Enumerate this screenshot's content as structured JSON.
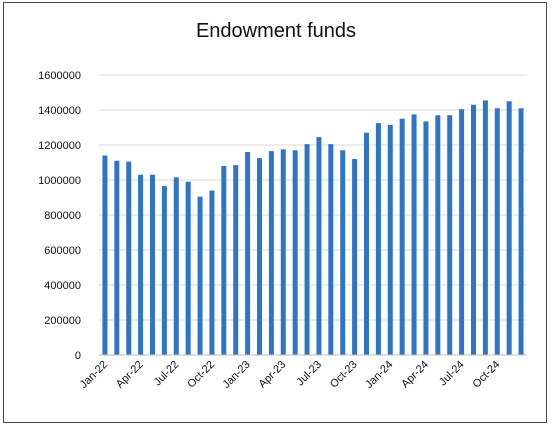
{
  "chart_data": {
    "type": "bar",
    "title": "Endowment funds",
    "xlabel": "",
    "ylabel": "",
    "ylim": [
      0,
      1600000
    ],
    "yticks": [
      0,
      200000,
      400000,
      600000,
      800000,
      1000000,
      1200000,
      1400000,
      1600000
    ],
    "ytick_labels": [
      "0",
      "200000",
      "400000",
      "600000",
      "800000",
      "1000000",
      "1200000",
      "1400000",
      "1600000"
    ],
    "grid": true,
    "bar_color": "#2e75c8",
    "categories": [
      "Jan-22",
      "Feb-22",
      "Mar-22",
      "Apr-22",
      "May-22",
      "Jun-22",
      "Jul-22",
      "Aug-22",
      "Sep-22",
      "Oct-22",
      "Nov-22",
      "Dec-22",
      "Jan-23",
      "Feb-23",
      "Mar-23",
      "Apr-23",
      "May-23",
      "Jun-23",
      "Jul-23",
      "Aug-23",
      "Sep-23",
      "Oct-23",
      "Nov-23",
      "Dec-23",
      "Jan-24",
      "Feb-24",
      "Mar-24",
      "Apr-24",
      "May-24",
      "Jun-24",
      "Jul-24",
      "Aug-24",
      "Sep-24",
      "Oct-24",
      "Nov-24",
      "Dec-24"
    ],
    "xtick_labels_shown": [
      {
        "index": 0,
        "label": "Jan-22"
      },
      {
        "index": 3,
        "label": "Apr-22"
      },
      {
        "index": 6,
        "label": "Jul-22"
      },
      {
        "index": 9,
        "label": "Oct-22"
      },
      {
        "index": 12,
        "label": "Jan-23"
      },
      {
        "index": 15,
        "label": "Apr-23"
      },
      {
        "index": 18,
        "label": "Jul-23"
      },
      {
        "index": 21,
        "label": "Oct-23"
      },
      {
        "index": 24,
        "label": "Jan-24"
      },
      {
        "index": 27,
        "label": "Apr-24"
      },
      {
        "index": 30,
        "label": "Jul-24"
      },
      {
        "index": 33,
        "label": "Oct-24"
      }
    ],
    "values": [
      1140000,
      1110000,
      1105000,
      1030000,
      1030000,
      965000,
      1015000,
      990000,
      905000,
      940000,
      1080000,
      1085000,
      1160000,
      1125000,
      1165000,
      1175000,
      1170000,
      1205000,
      1245000,
      1205000,
      1170000,
      1120000,
      1270000,
      1325000,
      1315000,
      1350000,
      1375000,
      1335000,
      1370000,
      1370000,
      1405000,
      1430000,
      1455000,
      1410000,
      1450000,
      1410000
    ]
  }
}
